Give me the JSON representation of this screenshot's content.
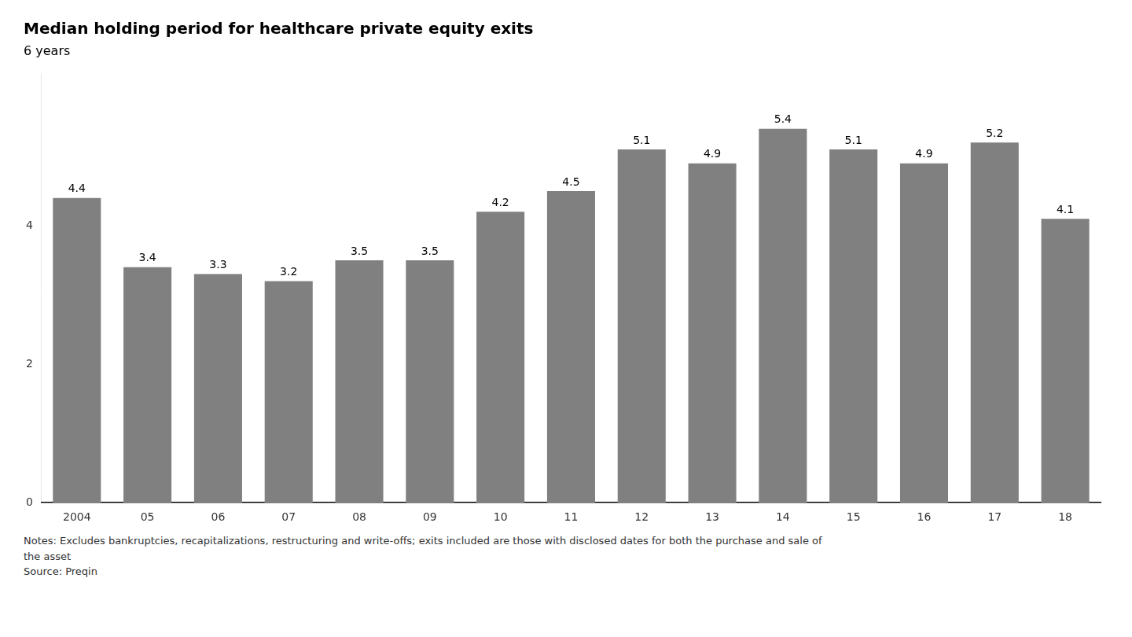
{
  "chart_data": {
    "type": "bar",
    "title": "Median holding period for healthcare private equity exits",
    "ylabel": "6 years",
    "categories": [
      "2004",
      "05",
      "06",
      "07",
      "08",
      "09",
      "10",
      "11",
      "12",
      "13",
      "14",
      "15",
      "16",
      "17",
      "18"
    ],
    "values": [
      4.4,
      3.4,
      3.3,
      3.2,
      3.5,
      3.5,
      4.2,
      4.5,
      5.1,
      4.9,
      5.4,
      5.1,
      4.9,
      5.2,
      4.1
    ],
    "color": "#808080",
    "ylim": [
      0,
      6.2
    ],
    "yticks": [
      0,
      2,
      4
    ],
    "grid": false,
    "data_labels": true,
    "notes": [
      "Notes: Excludes bankruptcies, recapitalizations, restructuring and write-offs; exits included are those with disclosed dates for both the purchase and sale of",
      "the asset",
      "Source: Preqin"
    ]
  }
}
